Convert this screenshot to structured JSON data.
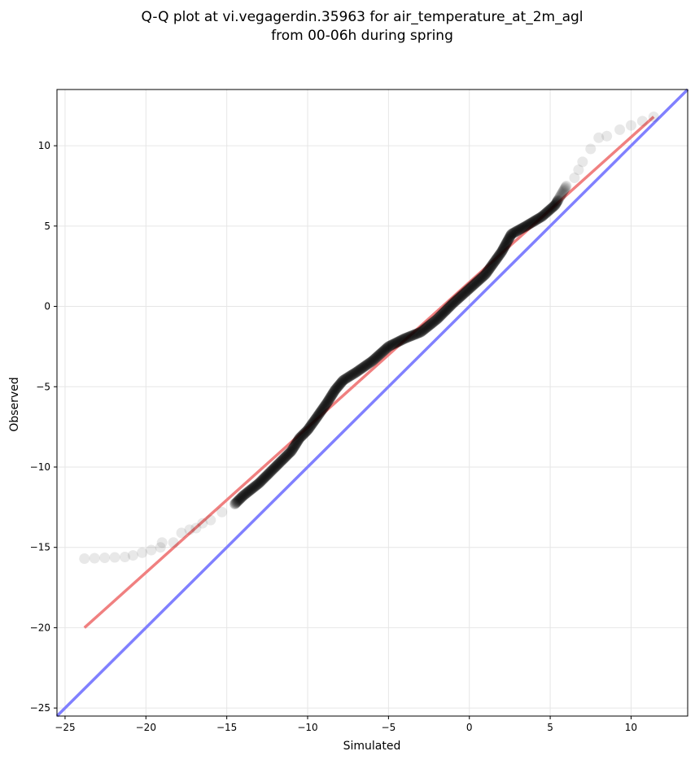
{
  "chart_data": {
    "type": "scatter",
    "title_line1": "Q-Q plot at vi.vegagerdin.35963 for air_temperature_at_2m_agl",
    "title_line2": "from 00-06h during spring",
    "xlabel": "Simulated",
    "ylabel": "Observed",
    "xlim": [
      -25.5,
      13.5
    ],
    "ylim": [
      -25.5,
      13.5
    ],
    "x_ticks": [
      -25,
      -20,
      -15,
      -10,
      -5,
      0,
      5,
      10
    ],
    "y_ticks": [
      -25,
      -20,
      -15,
      -10,
      -5,
      0,
      5,
      10
    ],
    "x_tick_labels": [
      "−25",
      "−20",
      "−15",
      "−10",
      "−5",
      "0",
      "5",
      "10"
    ],
    "y_tick_labels": [
      "−25",
      "−20",
      "−15",
      "−10",
      "−5",
      "0",
      "5",
      "10"
    ],
    "grid": true,
    "colors": {
      "points": "#000000",
      "fit_line": "#f08080",
      "identity_line": "#8080ff"
    },
    "quantile_curve": [
      [
        -23.8,
        -15.7
      ],
      [
        -21.3,
        -15.6
      ],
      [
        -20.8,
        -15.5
      ],
      [
        -19.1,
        -15.0
      ],
      [
        -19.0,
        -14.7
      ],
      [
        -18.3,
        -14.7
      ],
      [
        -17.8,
        -14.1
      ],
      [
        -17.3,
        -13.9
      ],
      [
        -16.9,
        -13.8
      ],
      [
        -16.5,
        -13.5
      ],
      [
        -16.0,
        -13.3
      ],
      [
        -15.3,
        -12.8
      ],
      [
        -14.5,
        -12.3
      ],
      [
        -14.0,
        -11.8
      ],
      [
        -13.0,
        -11.0
      ],
      [
        -12.0,
        -10.0
      ],
      [
        -11.0,
        -9.0
      ],
      [
        -10.5,
        -8.2
      ],
      [
        -10.0,
        -7.7
      ],
      [
        -9.5,
        -7.0
      ],
      [
        -8.8,
        -6.0
      ],
      [
        -8.3,
        -5.2
      ],
      [
        -7.8,
        -4.6
      ],
      [
        -7.0,
        -4.1
      ],
      [
        -6.0,
        -3.4
      ],
      [
        -5.0,
        -2.5
      ],
      [
        -4.0,
        -2.0
      ],
      [
        -3.0,
        -1.6
      ],
      [
        -2.0,
        -0.8
      ],
      [
        -1.0,
        0.2
      ],
      [
        0.0,
        1.1
      ],
      [
        1.0,
        2.0
      ],
      [
        2.0,
        3.4
      ],
      [
        2.6,
        4.5
      ],
      [
        3.5,
        5.0
      ],
      [
        4.5,
        5.6
      ],
      [
        5.3,
        6.3
      ],
      [
        6.0,
        7.5
      ],
      [
        6.5,
        8.0
      ],
      [
        7.0,
        9.0
      ],
      [
        7.5,
        9.8
      ],
      [
        8.0,
        10.5
      ],
      [
        8.5,
        10.6
      ],
      [
        9.3,
        11.0
      ],
      [
        11.4,
        11.8
      ]
    ],
    "fit_line": {
      "x": [
        -23.8,
        11.4
      ],
      "y": [
        -20.0,
        11.8
      ]
    },
    "identity_line": {
      "x": [
        -25.5,
        13.5
      ],
      "y": [
        -25.5,
        13.5
      ]
    }
  }
}
